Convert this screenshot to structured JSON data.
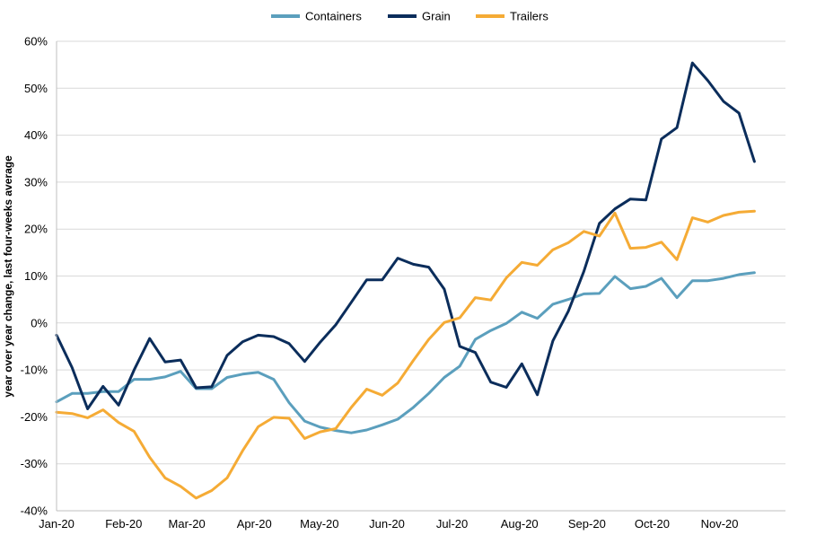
{
  "chart_data": {
    "type": "line",
    "title": "",
    "xlabel": "",
    "ylabel": "year over year change, last four-weeks average",
    "ylim": [
      -40,
      60
    ],
    "yticks": [
      60,
      50,
      40,
      30,
      20,
      10,
      0,
      -10,
      -20,
      -30,
      -40
    ],
    "ytick_labels": [
      "60%",
      "50%",
      "40%",
      "30%",
      "20%",
      "10%",
      "0%",
      "-10%",
      "-20%",
      "-30%",
      "-40%"
    ],
    "grid": true,
    "legend_position": "top-center",
    "x_count": 48,
    "month_ticks": [
      {
        "label": "Jan-20",
        "index": 0
      },
      {
        "label": "Feb-20",
        "index": 4.33
      },
      {
        "label": "Mar-20",
        "index": 8.4
      },
      {
        "label": "Apr-20",
        "index": 12.75
      },
      {
        "label": "May-20",
        "index": 16.95
      },
      {
        "label": "Jun-20",
        "index": 21.3
      },
      {
        "label": "Jul-20",
        "index": 25.5
      },
      {
        "label": "Aug-20",
        "index": 29.85
      },
      {
        "label": "Sep-20",
        "index": 34.2
      },
      {
        "label": "Oct-20",
        "index": 38.4
      },
      {
        "label": "Nov-20",
        "index": 42.75
      }
    ],
    "series": [
      {
        "name": "Containers",
        "color": "#5b9fbd",
        "values": [
          -16.8,
          -15.0,
          -15.0,
          -14.6,
          -14.6,
          -12.0,
          -12.0,
          -11.5,
          -10.3,
          -14.0,
          -14.0,
          -11.6,
          -10.9,
          -10.5,
          -12.0,
          -17.0,
          -20.9,
          -22.2,
          -22.9,
          -23.4,
          -22.8,
          -21.7,
          -20.5,
          -18.0,
          -15.0,
          -11.6,
          -9.2,
          -3.5,
          -1.6,
          -0.1,
          2.3,
          1.0,
          4.0,
          5.0,
          6.2,
          6.3,
          9.9,
          7.3,
          7.8,
          9.5,
          5.4,
          9.0,
          9.0,
          9.5,
          10.3,
          10.7
        ]
      },
      {
        "name": "Grain",
        "color": "#0b2d5b",
        "values": [
          -2.6,
          -9.5,
          -18.3,
          -13.5,
          -17.5,
          -10.0,
          -3.3,
          -8.3,
          -7.9,
          -13.8,
          -13.6,
          -6.9,
          -4.0,
          -2.6,
          -2.9,
          -4.4,
          -8.2,
          -4.1,
          -0.4,
          4.4,
          9.2,
          9.2,
          13.8,
          12.5,
          11.9,
          7.2,
          -5.0,
          -6.3,
          -12.6,
          -13.7,
          -8.7,
          -15.3,
          -3.8,
          2.5,
          11.0,
          21.2,
          24.3,
          26.4,
          26.2,
          39.2,
          41.6,
          55.4,
          51.6,
          47.2,
          44.7,
          34.4
        ]
      },
      {
        "name": "Trailers",
        "color": "#f5ab35",
        "values": [
          -19.0,
          -19.3,
          -20.2,
          -18.5,
          -21.2,
          -23.1,
          -28.6,
          -33.0,
          -34.8,
          -37.3,
          -35.7,
          -33.0,
          -27.2,
          -22.1,
          -20.1,
          -20.3,
          -24.6,
          -23.2,
          -22.5,
          -18.0,
          -14.1,
          -15.4,
          -12.8,
          -8.0,
          -3.5,
          0.1,
          1.1,
          5.4,
          4.9,
          9.6,
          12.9,
          12.3,
          15.6,
          17.1,
          19.5,
          18.5,
          23.4,
          15.9,
          16.1,
          17.2,
          13.5,
          22.4,
          21.5,
          22.9,
          23.6,
          23.8
        ]
      }
    ]
  }
}
